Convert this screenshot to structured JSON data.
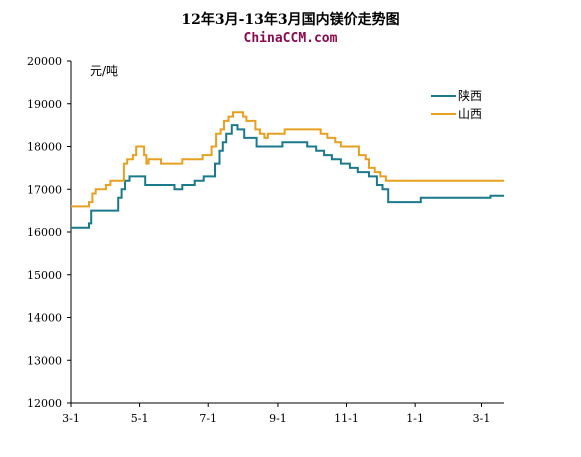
{
  "title": "12年3月-13年3月国内镁价走势图",
  "watermark": "ChinaCCM.com",
  "chart_data": {
    "type": "line",
    "title": "12年3月-13年3月国内镁价走势图",
    "ylabel": "元/吨",
    "xlabel": "",
    "ylim": [
      12000,
      20000
    ],
    "xlim": [
      0,
      385
    ],
    "yticks": [
      12000,
      13000,
      14000,
      15000,
      16000,
      17000,
      18000,
      19000,
      20000
    ],
    "xticks": [
      {
        "label": "3-1",
        "x": 0
      },
      {
        "label": "5-1",
        "x": 61
      },
      {
        "label": "7-1",
        "x": 122
      },
      {
        "label": "9-1",
        "x": 184
      },
      {
        "label": "11-1",
        "x": 245
      },
      {
        "label": "1-1",
        "x": 306
      },
      {
        "label": "3-1",
        "x": 365
      }
    ],
    "grid": false,
    "legend_position": "top-right",
    "series": [
      {
        "name": "陕西",
        "color": "#1a7a8c",
        "points": [
          [
            0,
            16100
          ],
          [
            14,
            16100
          ],
          [
            16,
            16200
          ],
          [
            18,
            16500
          ],
          [
            40,
            16500
          ],
          [
            42,
            16800
          ],
          [
            45,
            17000
          ],
          [
            48,
            17200
          ],
          [
            52,
            17300
          ],
          [
            60,
            17300
          ],
          [
            66,
            17100
          ],
          [
            90,
            17100
          ],
          [
            92,
            17000
          ],
          [
            97,
            17000
          ],
          [
            99,
            17100
          ],
          [
            108,
            17100
          ],
          [
            110,
            17200
          ],
          [
            118,
            17300
          ],
          [
            124,
            17300
          ],
          [
            128,
            17600
          ],
          [
            132,
            17900
          ],
          [
            135,
            18100
          ],
          [
            138,
            18300
          ],
          [
            143,
            18500
          ],
          [
            148,
            18400
          ],
          [
            154,
            18200
          ],
          [
            162,
            18200
          ],
          [
            165,
            18000
          ],
          [
            185,
            18000
          ],
          [
            188,
            18100
          ],
          [
            205,
            18100
          ],
          [
            210,
            18000
          ],
          [
            218,
            17900
          ],
          [
            225,
            17800
          ],
          [
            232,
            17700
          ],
          [
            240,
            17600
          ],
          [
            248,
            17500
          ],
          [
            255,
            17400
          ],
          [
            265,
            17300
          ],
          [
            272,
            17100
          ],
          [
            277,
            17000
          ],
          [
            282,
            16700
          ],
          [
            307,
            16700
          ],
          [
            311,
            16800
          ],
          [
            370,
            16800
          ],
          [
            373,
            16850
          ],
          [
            385,
            16850
          ]
        ]
      },
      {
        "name": "山西",
        "color": "#e8a020",
        "points": [
          [
            0,
            16600
          ],
          [
            14,
            16600
          ],
          [
            16,
            16700
          ],
          [
            19,
            16900
          ],
          [
            22,
            17000
          ],
          [
            29,
            17000
          ],
          [
            31,
            17100
          ],
          [
            35,
            17200
          ],
          [
            42,
            17200
          ],
          [
            47,
            17600
          ],
          [
            50,
            17700
          ],
          [
            55,
            17800
          ],
          [
            58,
            18000
          ],
          [
            62,
            18000
          ],
          [
            65,
            17800
          ],
          [
            67,
            17600
          ],
          [
            69,
            17700
          ],
          [
            77,
            17700
          ],
          [
            80,
            17600
          ],
          [
            96,
            17600
          ],
          [
            99,
            17700
          ],
          [
            115,
            17700
          ],
          [
            117,
            17800
          ],
          [
            122,
            17800
          ],
          [
            125,
            18000
          ],
          [
            129,
            18300
          ],
          [
            133,
            18400
          ],
          [
            136,
            18600
          ],
          [
            140,
            18700
          ],
          [
            144,
            18800
          ],
          [
            150,
            18800
          ],
          [
            153,
            18700
          ],
          [
            156,
            18600
          ],
          [
            163,
            18600
          ],
          [
            164,
            18400
          ],
          [
            168,
            18300
          ],
          [
            172,
            18200
          ],
          [
            175,
            18300
          ],
          [
            187,
            18300
          ],
          [
            190,
            18400
          ],
          [
            218,
            18400
          ],
          [
            222,
            18300
          ],
          [
            228,
            18200
          ],
          [
            235,
            18100
          ],
          [
            240,
            18000
          ],
          [
            253,
            18000
          ],
          [
            256,
            17800
          ],
          [
            262,
            17700
          ],
          [
            265,
            17500
          ],
          [
            270,
            17400
          ],
          [
            275,
            17300
          ],
          [
            280,
            17200
          ],
          [
            385,
            17200
          ]
        ]
      }
    ]
  }
}
